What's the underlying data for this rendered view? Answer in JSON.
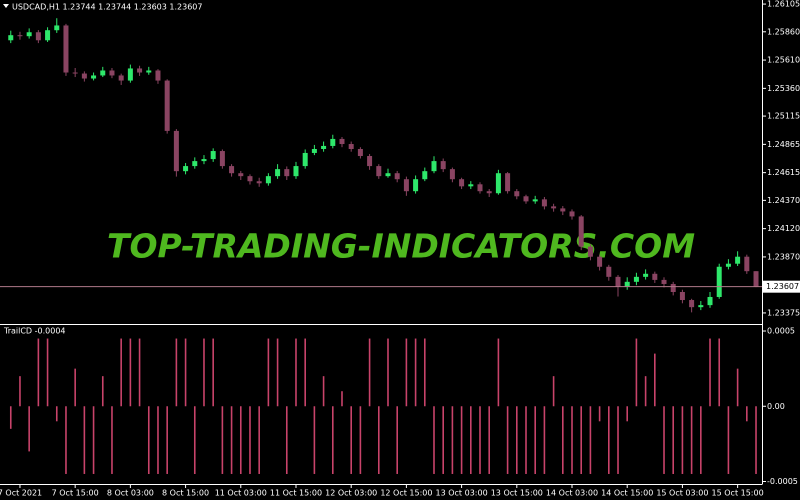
{
  "chart_data": [
    {
      "type": "candlestick",
      "title": "USDCAD,H1  1.23744 1.23744 1.23603 1.23607",
      "annotation": "TOP-TRADING-INDICATORS.COM",
      "up_color": "#2ee86b",
      "down_color": "#8a4462",
      "annotation_color": "#4fb81f",
      "xlim": [
        -1.17,
        81.65
      ],
      "ylim": [
        1.23286,
        1.26141
      ],
      "yticks": [
        1.26105,
        {
          "value": 1.2586,
          "label": "1.25860"
        },
        {
          "value": 1.2561,
          "label": "1.25610"
        },
        {
          "value": 1.2536,
          "label": "1.25360"
        },
        1.25115,
        1.24865,
        1.24615,
        {
          "value": 1.2437,
          "label": "1.24370"
        },
        {
          "value": 1.2412,
          "label": "1.24120"
        },
        {
          "value": 1.2387,
          "label": "1.23870"
        },
        1.23375
      ],
      "last_price": 1.23607,
      "open": [
        1.25785,
        1.2583,
        1.25821,
        1.25856,
        1.25785,
        1.25874,
        1.25916,
        1.255,
        1.25491,
        1.25447,
        1.25474,
        1.25518,
        1.25474,
        1.25429,
        1.25536,
        1.255,
        1.25518,
        1.25429,
        1.24984,
        1.24628,
        1.24673,
        1.24717,
        1.24735,
        1.24806,
        1.24673,
        1.2461,
        1.24584,
        1.24539,
        1.24521,
        1.24584,
        1.24646,
        1.24584,
        1.24673,
        1.24789,
        1.24824,
        1.24851,
        1.24913,
        1.24868,
        1.24824,
        1.24762,
        1.24673,
        1.24584,
        1.2461,
        1.24557,
        1.24451,
        1.24557,
        1.24628,
        1.24717,
        1.24646,
        1.24557,
        1.24494,
        1.24512,
        1.24451,
        1.24433,
        1.2461,
        1.24451,
        1.24406,
        1.24361,
        1.24379,
        1.24317,
        1.24299,
        1.24272,
        1.24228,
        1.23961,
        1.23872,
        1.23783,
        1.23694,
        1.23606,
        1.2365,
        1.23694,
        1.23721,
        1.23667,
        1.23631,
        1.2356,
        1.23489,
        1.23426,
        1.23444,
        1.23516,
        1.23783,
        1.2381,
        1.23872,
        1.23744
      ],
      "high": [
        1.2587,
        1.2586,
        1.2589,
        1.25875,
        1.259,
        1.2598,
        1.2593,
        1.2554,
        1.2551,
        1.255,
        1.2555,
        1.2554,
        1.2549,
        1.2557,
        1.2556,
        1.2555,
        1.2553,
        1.2544,
        1.25,
        1.247,
        1.2475,
        1.2477,
        1.2483,
        1.2482,
        1.2469,
        1.2463,
        1.246,
        1.2457,
        1.2461,
        1.2469,
        1.2467,
        1.2471,
        1.2482,
        1.2486,
        1.2489,
        1.2495,
        1.2493,
        1.2489,
        1.2484,
        1.2478,
        1.2469,
        1.2465,
        1.2463,
        1.2458,
        1.2459,
        1.2466,
        1.2476,
        1.2474,
        1.2466,
        1.2457,
        1.2454,
        1.2453,
        1.2447,
        1.2464,
        1.2462,
        1.2447,
        1.2442,
        1.2441,
        1.244,
        1.2434,
        1.2432,
        1.2429,
        1.2424,
        1.2398,
        1.2389,
        1.238,
        1.2371,
        1.2369,
        1.2373,
        1.2376,
        1.2374,
        1.2369,
        1.2365,
        1.2358,
        1.235,
        1.2348,
        1.2356,
        1.2381,
        1.2385,
        1.2392,
        1.2389,
        1.23744
      ],
      "low": [
        1.2576,
        1.2579,
        1.258,
        1.2576,
        1.2577,
        1.2585,
        1.2547,
        1.2546,
        1.2542,
        1.2543,
        1.2546,
        1.2545,
        1.2539,
        1.2541,
        1.2547,
        1.2548,
        1.254,
        1.2496,
        1.2458,
        1.246,
        1.2465,
        1.2469,
        1.2471,
        1.2465,
        1.2458,
        1.2455,
        1.2451,
        1.2449,
        1.245,
        1.2456,
        1.2455,
        1.2456,
        1.2465,
        1.2477,
        1.248,
        1.2483,
        1.2484,
        1.248,
        1.2474,
        1.2464,
        1.2456,
        1.2457,
        1.2453,
        1.2441,
        1.2443,
        1.2454,
        1.2461,
        1.2462,
        1.2453,
        1.2447,
        1.2447,
        1.2443,
        1.244,
        1.2442,
        1.2443,
        1.2438,
        1.2434,
        1.2434,
        1.2429,
        1.2427,
        1.2424,
        1.242,
        1.2393,
        1.2384,
        1.2375,
        1.2366,
        1.2352,
        1.2358,
        1.2362,
        1.2367,
        1.2364,
        1.236,
        1.2353,
        1.2346,
        1.2338,
        1.234,
        1.2342,
        1.235,
        1.2376,
        1.2379,
        1.2372,
        1.23603
      ],
      "close": [
        1.2583,
        1.25821,
        1.25856,
        1.25785,
        1.25874,
        1.25916,
        1.255,
        1.25491,
        1.25447,
        1.25474,
        1.25518,
        1.25474,
        1.25429,
        1.25536,
        1.255,
        1.25518,
        1.25429,
        1.24984,
        1.24628,
        1.24673,
        1.24717,
        1.24735,
        1.24806,
        1.24673,
        1.2461,
        1.24584,
        1.24539,
        1.24521,
        1.24584,
        1.24646,
        1.24584,
        1.24673,
        1.24789,
        1.24824,
        1.24851,
        1.24913,
        1.24868,
        1.24824,
        1.24762,
        1.24673,
        1.24584,
        1.2461,
        1.24557,
        1.24451,
        1.24557,
        1.24628,
        1.24717,
        1.24646,
        1.24557,
        1.24494,
        1.24512,
        1.24451,
        1.24433,
        1.2461,
        1.24451,
        1.24406,
        1.24361,
        1.24379,
        1.24317,
        1.24299,
        1.24272,
        1.24228,
        1.23961,
        1.23872,
        1.23783,
        1.23694,
        1.23606,
        1.2365,
        1.23694,
        1.23721,
        1.23667,
        1.23631,
        1.2356,
        1.23489,
        1.23426,
        1.23444,
        1.23516,
        1.23783,
        1.2381,
        1.23872,
        1.23744,
        1.23607
      ]
    },
    {
      "type": "bar",
      "title": "TrailCD -0.0004",
      "color": "#c8436a",
      "xlim": [
        -1.17,
        81.65
      ],
      "ylim": [
        -0.00051,
        0.00054
      ],
      "yticks": [
        0.0005,
        {
          "value": 0,
          "label": "0.00"
        },
        -0.0005
      ],
      "xticks": [
        {
          "value": 1,
          "label": "7 Oct 2021"
        },
        {
          "value": 7,
          "label": "7 Oct 15:00"
        },
        {
          "value": 13,
          "label": "8 Oct 03:00"
        },
        {
          "value": 19,
          "label": "8 Oct 15:00"
        },
        {
          "value": 25,
          "label": "11 Oct 03:00"
        },
        {
          "value": 31,
          "label": "11 Oct 15:00"
        },
        {
          "value": 37,
          "label": "12 Oct 03:00"
        },
        {
          "value": 43,
          "label": "12 Oct 15:00"
        },
        {
          "value": 49,
          "label": "13 Oct 03:00"
        },
        {
          "value": 55,
          "label": "13 Oct 15:00"
        },
        {
          "value": 61,
          "label": "14 Oct 03:00"
        },
        {
          "value": 67,
          "label": "14 Oct 15:00"
        },
        {
          "value": 73,
          "label": "15 Oct 03:00"
        },
        {
          "value": 79,
          "label": "15 Oct 15:00"
        }
      ],
      "values": [
        -0.00015,
        0.0002,
        -0.0003,
        0.00045,
        0.00045,
        -0.0001,
        -0.00045,
        0.00025,
        -0.00045,
        -0.00045,
        0.0002,
        -0.00045,
        0.00045,
        0.00045,
        0.00045,
        -0.00045,
        -0.00045,
        -0.00045,
        0.00045,
        0.00045,
        -0.00045,
        0.00045,
        0.00045,
        -0.00045,
        -0.00045,
        -0.00045,
        -0.00045,
        -0.00045,
        0.00045,
        0.00045,
        -0.00045,
        0.00045,
        0.00045,
        -0.00045,
        0.0002,
        -0.00045,
        0.0001,
        -0.00045,
        -0.00045,
        0.00045,
        -0.00045,
        0.00045,
        -0.00045,
        0.00045,
        0.00045,
        0.00045,
        -0.00045,
        -0.00045,
        -0.00045,
        -0.00045,
        -0.00045,
        -0.00045,
        -0.00045,
        0.00045,
        -0.00045,
        -0.00045,
        -0.00045,
        -0.00045,
        -0.00045,
        0.0002,
        -0.00045,
        -0.00045,
        -0.00045,
        -0.00045,
        -0.0001,
        -0.00045,
        -0.00045,
        -0.0001,
        0.00045,
        0.0002,
        0.00035,
        -0.00045,
        -0.00045,
        -0.00045,
        -0.00045,
        -0.00045,
        0.00045,
        0.00045,
        -0.00045,
        0.00025,
        -0.0001,
        -0.00045
      ]
    }
  ]
}
